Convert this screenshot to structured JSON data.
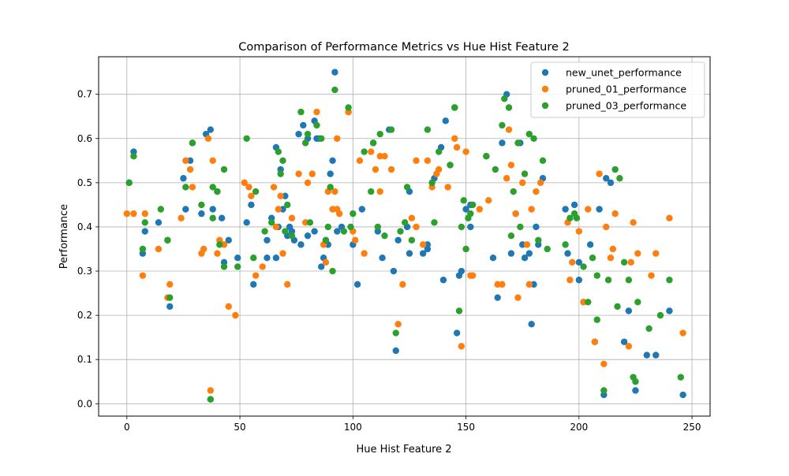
{
  "chart_data": {
    "type": "scatter",
    "title": "Comparison of Performance Metrics vs Hue Hist Feature 2",
    "xlabel": "Hue Hist Feature 2",
    "ylabel": "Performance",
    "xlim": [
      -12.5,
      258
    ],
    "ylim": [
      -0.028,
      0.785
    ],
    "xticks": [
      0,
      50,
      100,
      150,
      200,
      250
    ],
    "yticks": [
      0.0,
      0.1,
      0.2,
      0.3,
      0.4,
      0.5,
      0.6,
      0.7
    ],
    "grid": true,
    "legend_position": "top-right",
    "series": [
      {
        "name": "new_unet_performance",
        "color": "#1f77b4",
        "x": [
          1,
          3,
          7,
          8,
          14,
          18,
          19,
          25,
          26,
          28,
          29,
          33,
          35,
          37,
          38,
          40,
          42,
          43,
          49,
          53,
          55,
          56,
          62,
          66,
          67,
          68,
          69,
          70,
          72,
          74,
          76,
          78,
          80,
          83,
          84,
          86,
          87,
          88,
          90,
          91,
          92,
          95,
          98,
          104,
          109,
          111,
          113,
          116,
          118,
          119,
          124,
          125,
          131,
          133,
          136,
          139,
          141,
          143,
          145,
          146,
          148,
          150,
          152,
          159,
          164,
          166,
          168,
          170,
          174,
          175,
          178,
          179,
          180,
          182,
          184,
          195,
          198,
          200,
          202,
          205,
          207,
          209,
          211,
          214,
          220,
          222,
          225,
          230,
          234,
          240,
          246,
          37,
          45,
          62,
          64,
          66,
          71,
          73,
          77,
          80,
          83,
          85,
          89,
          93,
          100,
          102,
          120,
          125,
          133,
          140,
          147,
          152,
          162,
          172,
          176,
          181,
          194,
          200,
          212
        ],
        "y": [
          0.5,
          0.57,
          0.34,
          0.39,
          0.41,
          0.37,
          0.22,
          0.51,
          0.44,
          0.55,
          0.59,
          0.43,
          0.61,
          0.62,
          0.44,
          0.48,
          0.42,
          0.32,
          0.33,
          0.41,
          0.45,
          0.27,
          0.37,
          0.58,
          0.4,
          0.53,
          0.44,
          0.47,
          0.4,
          0.37,
          0.61,
          0.63,
          0.6,
          0.64,
          0.6,
          0.31,
          0.33,
          0.37,
          0.52,
          0.55,
          0.75,
          0.4,
          0.66,
          0.44,
          0.59,
          0.39,
          0.33,
          0.62,
          0.3,
          0.12,
          0.4,
          0.48,
          0.34,
          0.35,
          0.51,
          0.58,
          0.64,
          0.54,
          0.67,
          0.16,
          0.3,
          0.44,
          0.4,
          0.56,
          0.24,
          0.59,
          0.7,
          0.34,
          0.59,
          0.36,
          0.34,
          0.18,
          0.27,
          0.36,
          0.51,
          0.34,
          0.45,
          0.28,
          0.23,
          0.36,
          0.14,
          0.44,
          0.02,
          0.5,
          0.14,
          0.21,
          0.03,
          0.11,
          0.11,
          0.21,
          0.02,
          0.01,
          0.37,
          0.33,
          0.42,
          0.33,
          0.38,
          0.39,
          0.36,
          0.38,
          0.39,
          0.6,
          0.36,
          0.39,
          0.36,
          0.27,
          0.37,
          0.34,
          0.36,
          0.28,
          0.29,
          0.45,
          0.33,
          0.43,
          0.33,
          0.4,
          0.44,
          0.32,
          0.51
        ]
      },
      {
        "name": "pruned_01_performance",
        "color": "#ff7f0e",
        "x": [
          0,
          3,
          7,
          8,
          14,
          18,
          19,
          24,
          26,
          28,
          29,
          33,
          34,
          36,
          37,
          38,
          40,
          41,
          43,
          48,
          52,
          54,
          55,
          60,
          65,
          67,
          68,
          69,
          71,
          76,
          79,
          80,
          82,
          84,
          88,
          89,
          91,
          92,
          93,
          94,
          98,
          100,
          103,
          105,
          108,
          110,
          112,
          114,
          117,
          120,
          122,
          126,
          128,
          131,
          133,
          137,
          138,
          142,
          145,
          146,
          148,
          150,
          152,
          153,
          160,
          164,
          166,
          169,
          170,
          172,
          173,
          175,
          177,
          179,
          181,
          183,
          195,
          197,
          200,
          202,
          204,
          207,
          209,
          211,
          212,
          214,
          216,
          222,
          224,
          226,
          232,
          234,
          240,
          246,
          45,
          57,
          66,
          73,
          87,
          93,
          101,
          112,
          128,
          135,
          156,
          168,
          178,
          196,
          215,
          223
        ],
        "y": [
          0.43,
          0.43,
          0.29,
          0.43,
          0.35,
          0.24,
          0.27,
          0.42,
          0.55,
          0.53,
          0.49,
          0.34,
          0.35,
          0.6,
          0.03,
          0.55,
          0.34,
          0.37,
          0.36,
          0.2,
          0.5,
          0.49,
          0.47,
          0.31,
          0.49,
          0.44,
          0.47,
          0.34,
          0.27,
          0.52,
          0.41,
          0.5,
          0.52,
          0.66,
          0.32,
          0.48,
          0.44,
          0.48,
          0.6,
          0.43,
          0.66,
          0.39,
          0.55,
          0.34,
          0.57,
          0.53,
          0.56,
          0.56,
          0.53,
          0.18,
          0.27,
          0.42,
          0.55,
          0.36,
          0.55,
          0.52,
          0.53,
          0.49,
          0.6,
          0.58,
          0.13,
          0.57,
          0.29,
          0.29,
          0.46,
          0.27,
          0.27,
          0.62,
          0.54,
          0.43,
          0.24,
          0.5,
          0.36,
          0.44,
          0.48,
          0.5,
          0.41,
          0.32,
          0.39,
          0.23,
          0.44,
          0.14,
          0.52,
          0.09,
          0.4,
          0.33,
          0.43,
          0.13,
          0.41,
          0.34,
          0.29,
          0.34,
          0.42,
          0.16,
          0.22,
          0.29,
          0.4,
          0.42,
          0.36,
          0.44,
          0.37,
          0.48,
          0.4,
          0.49,
          0.44,
          0.51,
          0.27,
          0.28,
          0.35,
          0.32
        ]
      },
      {
        "name": "pruned_03_performance",
        "color": "#2ca02c",
        "x": [
          1,
          3,
          7,
          8,
          15,
          18,
          19,
          26,
          29,
          33,
          37,
          38,
          40,
          41,
          43,
          49,
          53,
          56,
          61,
          67,
          68,
          69,
          71,
          73,
          77,
          79,
          80,
          84,
          86,
          88,
          90,
          91,
          92,
          98,
          100,
          105,
          108,
          109,
          112,
          114,
          117,
          119,
          121,
          124,
          126,
          133,
          135,
          138,
          143,
          145,
          147,
          148,
          150,
          151,
          152,
          159,
          163,
          166,
          167,
          169,
          171,
          173,
          176,
          178,
          180,
          182,
          184,
          194,
          196,
          198,
          202,
          204,
          206,
          208,
          211,
          213,
          216,
          217,
          220,
          222,
          224,
          226,
          231,
          236,
          240,
          245,
          38,
          43,
          57,
          64,
          70,
          81,
          89,
          96,
          99,
          111,
          123,
          136,
          149,
          153,
          170,
          174,
          186,
          199,
          208,
          218,
          225
        ],
        "y": [
          0.5,
          0.56,
          0.35,
          0.41,
          0.44,
          0.37,
          0.24,
          0.49,
          0.59,
          0.45,
          0.01,
          0.42,
          0.48,
          0.36,
          0.31,
          0.31,
          0.6,
          0.33,
          0.39,
          0.57,
          0.52,
          0.55,
          0.45,
          0.38,
          0.66,
          0.59,
          0.61,
          0.63,
          0.6,
          0.37,
          0.49,
          0.3,
          0.71,
          0.67,
          0.43,
          0.57,
          0.48,
          0.59,
          0.61,
          0.38,
          0.62,
          0.16,
          0.39,
          0.49,
          0.37,
          0.62,
          0.5,
          0.57,
          0.54,
          0.67,
          0.21,
          0.4,
          0.35,
          0.42,
          0.43,
          0.56,
          0.53,
          0.63,
          0.69,
          0.67,
          0.48,
          0.59,
          0.52,
          0.61,
          0.6,
          0.37,
          0.55,
          0.36,
          0.42,
          0.43,
          0.31,
          0.23,
          0.33,
          0.19,
          0.03,
          0.28,
          0.53,
          0.22,
          0.32,
          0.28,
          0.06,
          0.23,
          0.17,
          0.2,
          0.28,
          0.06,
          0.49,
          0.53,
          0.48,
          0.41,
          0.39,
          0.41,
          0.4,
          0.39,
          0.4,
          0.4,
          0.41,
          0.41,
          0.46,
          0.45,
          0.38,
          0.4,
          0.35,
          0.42,
          0.29,
          0.51,
          0.05
        ]
      }
    ]
  }
}
